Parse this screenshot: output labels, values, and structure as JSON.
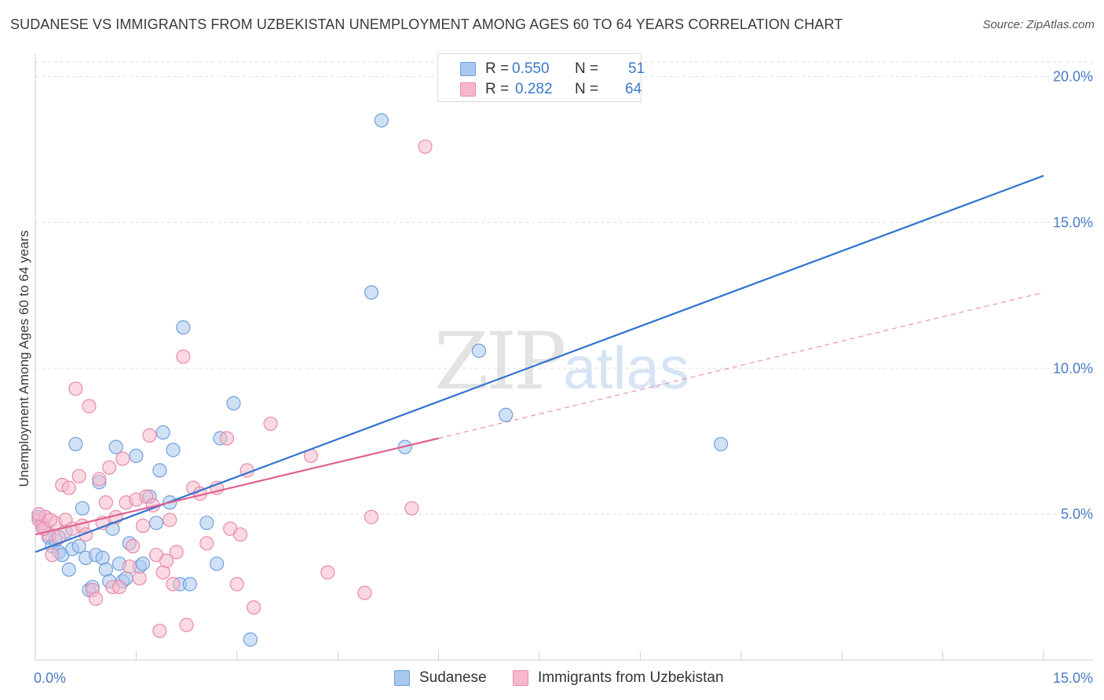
{
  "title": "SUDANESE VS IMMIGRANTS FROM UZBEKISTAN UNEMPLOYMENT AMONG AGES 60 TO 64 YEARS CORRELATION CHART",
  "source": "Source: ZipAtlas.com",
  "watermark": {
    "zip": "ZIP",
    "atlas": "atlas"
  },
  "legend": {
    "rows": [
      {
        "r_label": "R =",
        "r_value": "0.550",
        "n_label": "N =",
        "n_value": "51"
      },
      {
        "r_label": "R =",
        "r_value": "0.282",
        "n_label": "N =",
        "n_value": "64"
      }
    ]
  },
  "colors": {
    "blue_fill": "#a9c8ee",
    "blue_stroke": "#6fa0dc",
    "blue_line": "#2f72cf",
    "pink_fill": "#f6b9cb",
    "pink_stroke": "#e98aaa",
    "pink_line": "#e0608f",
    "tick_text": "#4a7cc6",
    "grid": "#dedede"
  },
  "chart_data": {
    "type": "scatter",
    "title": "SUDANESE VS IMMIGRANTS FROM UZBEKISTAN UNEMPLOYMENT AMONG AGES 60 TO 64 YEARS CORRELATION CHART",
    "xlabel": "",
    "ylabel": "Unemployment Among Ages 60 to 64 years",
    "xlim": [
      0,
      15
    ],
    "ylim": [
      0,
      20.5
    ],
    "x_tick_labels": [
      "0.0%",
      "15.0%"
    ],
    "y_ticks": [
      5,
      10,
      15,
      20
    ],
    "y_tick_labels": [
      "5.0%",
      "10.0%",
      "15.0%",
      "20.0%"
    ],
    "series": [
      {
        "name": "Sudanese",
        "color": "blue",
        "points": [
          [
            0.05,
            4.9
          ],
          [
            0.1,
            4.7
          ],
          [
            0.15,
            4.5
          ],
          [
            0.2,
            4.2
          ],
          [
            0.25,
            3.9
          ],
          [
            0.3,
            4.1
          ],
          [
            0.35,
            3.7
          ],
          [
            0.4,
            3.6
          ],
          [
            0.45,
            4.4
          ],
          [
            0.5,
            3.1
          ],
          [
            0.55,
            3.8
          ],
          [
            0.6,
            7.4
          ],
          [
            0.65,
            3.9
          ],
          [
            0.7,
            5.2
          ],
          [
            0.75,
            3.5
          ],
          [
            0.8,
            2.4
          ],
          [
            0.85,
            2.5
          ],
          [
            0.9,
            3.6
          ],
          [
            0.95,
            6.1
          ],
          [
            1.0,
            3.5
          ],
          [
            1.05,
            3.1
          ],
          [
            1.1,
            2.7
          ],
          [
            1.15,
            4.5
          ],
          [
            1.2,
            7.3
          ],
          [
            1.25,
            3.3
          ],
          [
            1.3,
            2.7
          ],
          [
            1.35,
            2.8
          ],
          [
            1.4,
            4.0
          ],
          [
            1.5,
            7.0
          ],
          [
            1.55,
            3.2
          ],
          [
            1.6,
            3.3
          ],
          [
            1.7,
            5.6
          ],
          [
            1.8,
            4.7
          ],
          [
            1.85,
            6.5
          ],
          [
            1.9,
            7.8
          ],
          [
            2.0,
            5.4
          ],
          [
            2.05,
            7.2
          ],
          [
            2.15,
            2.6
          ],
          [
            2.2,
            11.4
          ],
          [
            2.3,
            2.6
          ],
          [
            2.55,
            4.7
          ],
          [
            2.7,
            3.3
          ],
          [
            2.75,
            7.6
          ],
          [
            2.95,
            8.8
          ],
          [
            3.2,
            0.7
          ],
          [
            5.0,
            12.6
          ],
          [
            5.15,
            18.5
          ],
          [
            5.5,
            7.3
          ],
          [
            6.6,
            10.6
          ],
          [
            7.0,
            8.4
          ],
          [
            10.2,
            7.4
          ]
        ]
      },
      {
        "name": "Immigrants from Uzbekistan",
        "color": "pink",
        "points": [
          [
            0.05,
            4.8
          ],
          [
            0.1,
            4.6
          ],
          [
            0.15,
            4.9
          ],
          [
            0.2,
            4.3
          ],
          [
            0.25,
            3.6
          ],
          [
            0.3,
            4.7
          ],
          [
            0.35,
            4.2
          ],
          [
            0.4,
            6.0
          ],
          [
            0.45,
            4.8
          ],
          [
            0.5,
            5.9
          ],
          [
            0.55,
            4.5
          ],
          [
            0.6,
            9.3
          ],
          [
            0.65,
            6.3
          ],
          [
            0.7,
            4.6
          ],
          [
            0.75,
            4.3
          ],
          [
            0.8,
            8.7
          ],
          [
            0.85,
            2.4
          ],
          [
            0.9,
            2.1
          ],
          [
            0.95,
            6.2
          ],
          [
            1.0,
            4.7
          ],
          [
            1.05,
            5.4
          ],
          [
            1.1,
            6.6
          ],
          [
            1.15,
            2.5
          ],
          [
            1.2,
            4.9
          ],
          [
            1.25,
            2.5
          ],
          [
            1.3,
            6.9
          ],
          [
            1.35,
            5.4
          ],
          [
            1.4,
            3.2
          ],
          [
            1.45,
            3.9
          ],
          [
            1.5,
            5.5
          ],
          [
            1.55,
            2.8
          ],
          [
            1.6,
            4.6
          ],
          [
            1.65,
            5.6
          ],
          [
            1.7,
            7.7
          ],
          [
            1.75,
            5.3
          ],
          [
            1.8,
            3.6
          ],
          [
            1.85,
            1.0
          ],
          [
            1.9,
            3.0
          ],
          [
            1.95,
            3.4
          ],
          [
            2.0,
            4.8
          ],
          [
            2.05,
            2.6
          ],
          [
            2.1,
            3.7
          ],
          [
            2.2,
            10.4
          ],
          [
            2.25,
            1.2
          ],
          [
            2.35,
            5.9
          ],
          [
            2.45,
            5.7
          ],
          [
            2.55,
            4.0
          ],
          [
            2.7,
            5.9
          ],
          [
            2.85,
            7.6
          ],
          [
            2.9,
            4.5
          ],
          [
            3.0,
            2.6
          ],
          [
            3.05,
            4.3
          ],
          [
            3.15,
            6.5
          ],
          [
            3.25,
            1.8
          ],
          [
            3.5,
            8.1
          ],
          [
            4.1,
            7.0
          ],
          [
            4.35,
            3.0
          ],
          [
            4.9,
            2.3
          ],
          [
            5.0,
            4.9
          ],
          [
            5.6,
            5.2
          ],
          [
            5.8,
            17.6
          ],
          [
            0.05,
            5.0
          ],
          [
            0.12,
            4.5
          ],
          [
            0.22,
            4.8
          ]
        ]
      }
    ],
    "trend_lines": [
      {
        "series": "Sudanese",
        "style": "solid",
        "x": [
          0,
          15
        ],
        "y": [
          3.7,
          16.6
        ]
      },
      {
        "series": "Immigrants from Uzbekistan",
        "style": "solid",
        "x": [
          0,
          6.0
        ],
        "y": [
          4.3,
          7.6
        ]
      },
      {
        "series": "Immigrants from Uzbekistan",
        "style": "dashed",
        "x": [
          6.0,
          15
        ],
        "y": [
          7.6,
          12.6
        ]
      }
    ]
  },
  "bottom_legend": [
    "Sudanese",
    "Immigrants from Uzbekistan"
  ]
}
